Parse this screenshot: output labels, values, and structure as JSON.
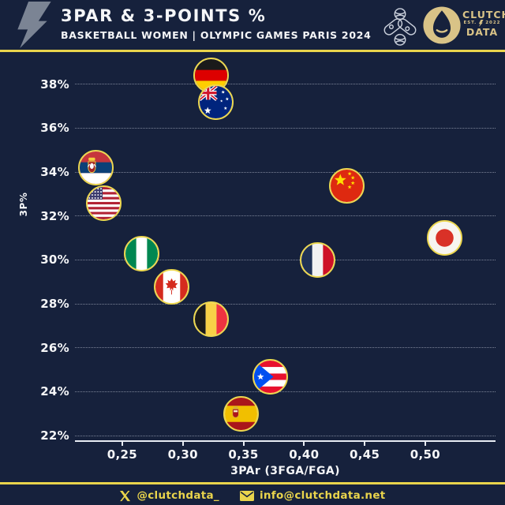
{
  "header": {
    "title": "3PAR & 3-POINTS %",
    "subtitle": "BASKETBALL WOMEN | OLYMPIC GAMES PARIS 2024"
  },
  "brand": {
    "name_top": "CLUTCH",
    "est": "EST.",
    "year": "2022",
    "name_bottom": "DATA",
    "icons": [
      "lightning-bolt",
      "paris-2024-basketball-pictogram",
      "paris-2024-flame-emblem"
    ]
  },
  "footer": {
    "twitter_handle": "@clutchdata_",
    "email": "info@clutchdata.net"
  },
  "colors": {
    "background": "#16213c",
    "accent_yellow": "#e9d44c",
    "brand_gold": "#d9c387",
    "text": "#f5f6f8",
    "flag_ring": "#ecd74f",
    "bolt_gray": "#7b8494"
  },
  "chart_data": {
    "type": "scatter",
    "title": "3PAR & 3-POINTS %",
    "subtitle": "BASKETBALL WOMEN | OLYMPIC GAMES PARIS 2024",
    "xlabel": "3PAr (3FGA/FGA)",
    "ylabel": "3P%",
    "xlim": [
      0.211,
      0.558
    ],
    "ylim": [
      21.8,
      39.33
    ],
    "grid": "horizontal dotted lines",
    "legend": "none",
    "marker": "circular country-flag badges with yellow ring",
    "x_ticks": [
      {
        "value": 0.25,
        "label": "0,25"
      },
      {
        "value": 0.3,
        "label": "0,30"
      },
      {
        "value": 0.35,
        "label": "0,35"
      },
      {
        "value": 0.4,
        "label": "0,40"
      },
      {
        "value": 0.45,
        "label": "0,45"
      },
      {
        "value": 0.5,
        "label": "0,50"
      }
    ],
    "y_ticks": [
      {
        "value": 22,
        "label": "22%"
      },
      {
        "value": 24,
        "label": "24%"
      },
      {
        "value": 26,
        "label": "26%"
      },
      {
        "value": 28,
        "label": "28%"
      },
      {
        "value": 30,
        "label": "30%"
      },
      {
        "value": 32,
        "label": "32%"
      },
      {
        "value": 34,
        "label": "34%"
      },
      {
        "value": 36,
        "label": "36%"
      },
      {
        "value": 38,
        "label": "38%"
      }
    ],
    "points": [
      {
        "team": "Germany",
        "code": "de",
        "x": 0.323,
        "y": 38.4
      },
      {
        "team": "Australia",
        "code": "au",
        "x": 0.327,
        "y": 37.2
      },
      {
        "team": "Serbia",
        "code": "rs",
        "x": 0.228,
        "y": 34.2
      },
      {
        "team": "China",
        "code": "cn",
        "x": 0.435,
        "y": 33.4
      },
      {
        "team": "United States",
        "code": "us",
        "x": 0.235,
        "y": 32.6
      },
      {
        "team": "Japan",
        "code": "jp",
        "x": 0.516,
        "y": 31.0
      },
      {
        "team": "Nigeria",
        "code": "ng",
        "x": 0.266,
        "y": 30.3
      },
      {
        "team": "France",
        "code": "fr",
        "x": 0.411,
        "y": 30.0
      },
      {
        "team": "Canada",
        "code": "ca",
        "x": 0.291,
        "y": 28.8
      },
      {
        "team": "Belgium",
        "code": "be",
        "x": 0.323,
        "y": 27.3
      },
      {
        "team": "Puerto Rico",
        "code": "pr",
        "x": 0.372,
        "y": 24.7
      },
      {
        "team": "Spain",
        "code": "es",
        "x": 0.348,
        "y": 23.0
      }
    ]
  }
}
